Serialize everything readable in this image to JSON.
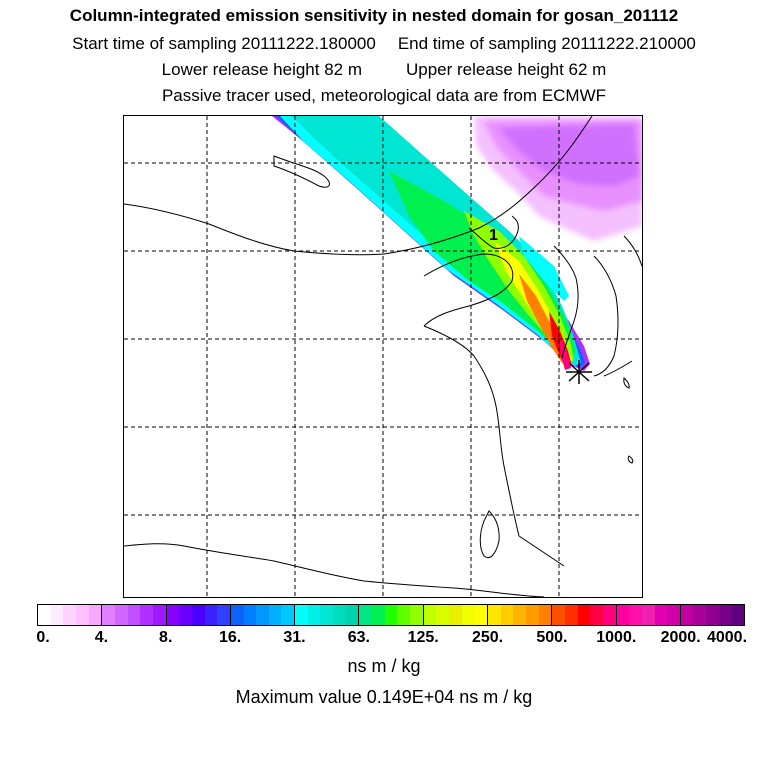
{
  "title": "Column-integrated emission sensitivity in nested domain for gosan_201112",
  "sampling": {
    "start": "Start time of sampling 20111222.180000",
    "end": "End time of sampling 20111222.210000"
  },
  "release": {
    "lower": "Lower release height   82 m",
    "upper": "Upper release height   62 m"
  },
  "tracer_info": "Passive tracer used, meteorological data are from ECMWF",
  "map": {
    "release_marker": "gosan-release-site",
    "trajectory_label": "1",
    "colors": {
      "coast": "#000000",
      "grid": "#000000"
    }
  },
  "colorbar": {
    "ticks": [
      "0.",
      "4.",
      "8.",
      "16.",
      "31.",
      "63.",
      "125.",
      "250.",
      "500.",
      "1000.",
      "2000.",
      "4000."
    ],
    "colors": [
      "#ffffff",
      "#ffeaff",
      "#ffd5ff",
      "#ffc0ff",
      "#f8a8ff",
      "#e080ff",
      "#d068ff",
      "#c050ff",
      "#b030ff",
      "#a018ff",
      "#8800ff",
      "#6a00ff",
      "#4c00ff",
      "#3c20ff",
      "#3040ff",
      "#1060ff",
      "#0080ff",
      "#0098ff",
      "#00b0ff",
      "#00c8ff",
      "#00ffff",
      "#00f0e6",
      "#00e6d2",
      "#00dcbe",
      "#00d2aa",
      "#00e680",
      "#00f050",
      "#20ff00",
      "#60ff00",
      "#90ff00",
      "#c0ff00",
      "#d8ff00",
      "#e6f000",
      "#f0ff00",
      "#ffff00",
      "#ffe600",
      "#ffcc00",
      "#ffb400",
      "#ff9a00",
      "#ff8000",
      "#ff5000",
      "#ff3000",
      "#ff0000",
      "#ff0040",
      "#ff0080",
      "#ff00a0",
      "#ff10a8",
      "#f020b0",
      "#e000b0",
      "#d000a8",
      "#c000a0",
      "#a80098",
      "#900090",
      "#780088",
      "#600080"
    ],
    "units": "ns m / kg",
    "maximum": "Maximum value  0.149E+04 ns m / kg"
  }
}
